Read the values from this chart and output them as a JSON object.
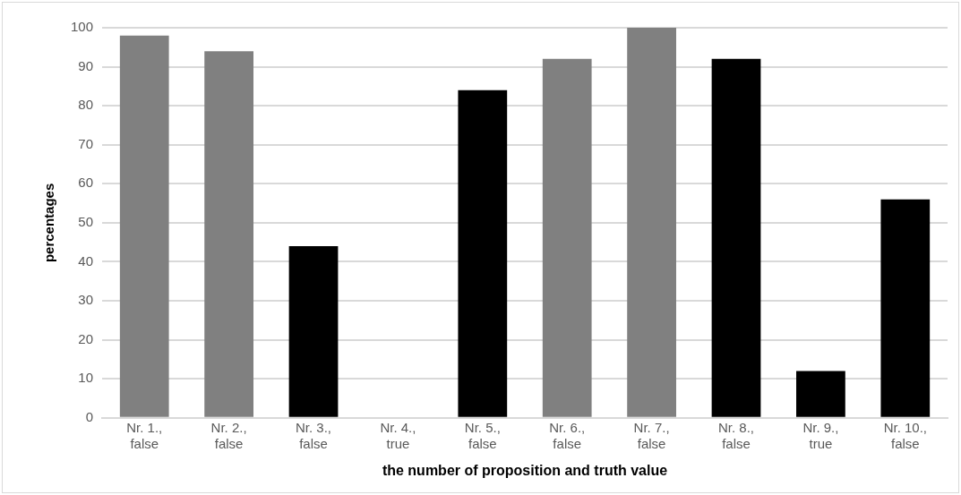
{
  "chart_data": {
    "type": "bar",
    "xlabel": "the number of proposition and truth value",
    "ylabel": "percentages",
    "categories": [
      "Nr. 1., false",
      "Nr. 2., false",
      "Nr. 3., false",
      "Nr. 4., true",
      "Nr. 5., false",
      "Nr. 6., false",
      "Nr. 7., false",
      "Nr. 8., false",
      "Nr. 9., true",
      "Nr. 10., false"
    ],
    "values": [
      98,
      94,
      44,
      0,
      84,
      92,
      100,
      92,
      12,
      56
    ],
    "colors": [
      "#808080",
      "#808080",
      "#000000",
      "#000000",
      "#000000",
      "#808080",
      "#808080",
      "#000000",
      "#000000",
      "#000000"
    ],
    "ylim": [
      0,
      100
    ],
    "yticks": [
      0,
      10,
      20,
      30,
      40,
      50,
      60,
      70,
      80,
      90,
      100
    ],
    "grid": "y",
    "legend": false
  }
}
